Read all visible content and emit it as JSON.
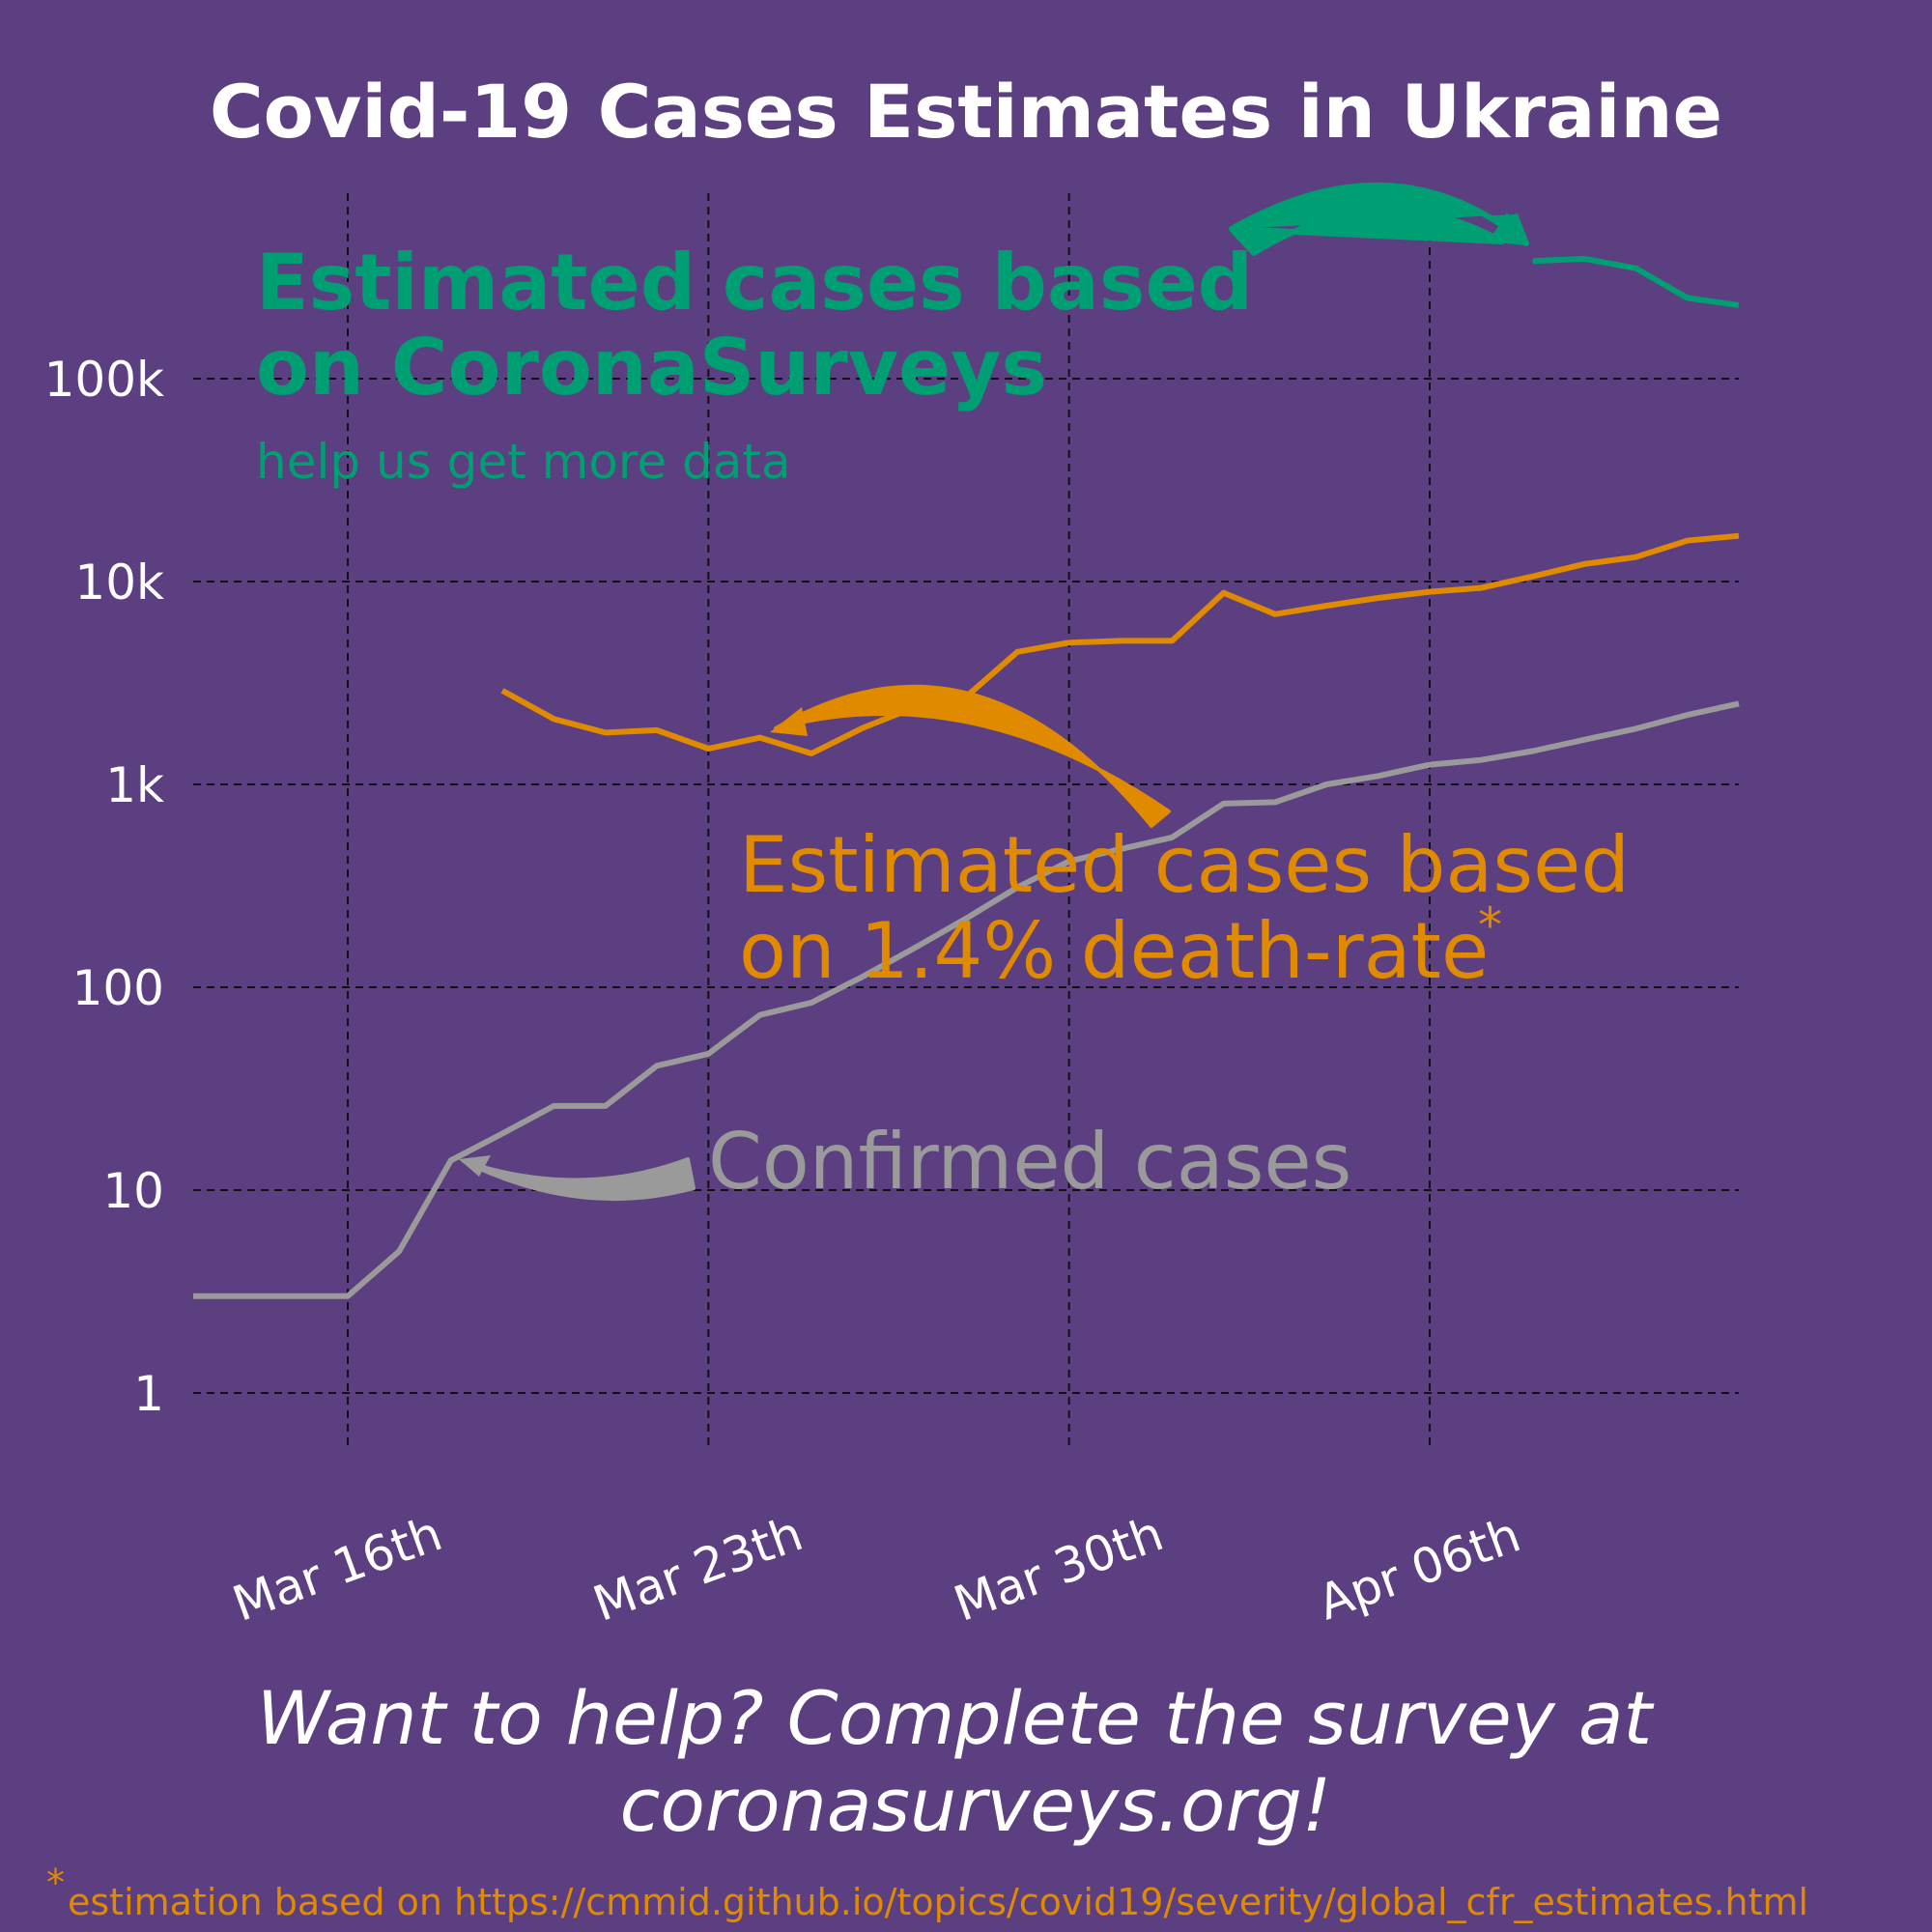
{
  "colors": {
    "background": "#5c3f80",
    "surveys": "#009e73",
    "deaths": "#e08a00",
    "confirmed": "#9a9a9a",
    "text": "#ffffff"
  },
  "chart_data": {
    "type": "line",
    "title": "Covid-19 Cases Estimates in Ukraine",
    "xlabel": "",
    "ylabel": "",
    "y_scale": "log",
    "grid": true,
    "ylim": [
      0.5,
      300000
    ],
    "y_ticks": [
      1,
      10,
      100,
      1000,
      10000,
      100000
    ],
    "y_tick_labels": [
      "1",
      "10",
      "100",
      "1k",
      "10k",
      "100k"
    ],
    "x_range": [
      "2020-03-13",
      "2020-04-12"
    ],
    "x_ticks": [
      "2020-03-16",
      "2020-03-23",
      "2020-03-30",
      "2020-04-06"
    ],
    "x_tick_labels": [
      "Mar 16th",
      "Mar 23th",
      "Mar 30th",
      "Apr 06th"
    ],
    "series": [
      {
        "name": "Confirmed cases",
        "color": "#9a9a9a",
        "points": [
          [
            "2020-03-13",
            3
          ],
          [
            "2020-03-14",
            3
          ],
          [
            "2020-03-15",
            3
          ],
          [
            "2020-03-16",
            3
          ],
          [
            "2020-03-17",
            5
          ],
          [
            "2020-03-18",
            14
          ],
          [
            "2020-03-19",
            19
          ],
          [
            "2020-03-20",
            26
          ],
          [
            "2020-03-21",
            26
          ],
          [
            "2020-03-22",
            41
          ],
          [
            "2020-03-23",
            47
          ],
          [
            "2020-03-24",
            73
          ],
          [
            "2020-03-25",
            84
          ],
          [
            "2020-03-26",
            113
          ],
          [
            "2020-03-27",
            156
          ],
          [
            "2020-03-28",
            218
          ],
          [
            "2020-03-29",
            311
          ],
          [
            "2020-03-30",
            418
          ],
          [
            "2020-03-31",
            480
          ],
          [
            "2020-04-01",
            548
          ],
          [
            "2020-04-02",
            804
          ],
          [
            "2020-04-03",
            817
          ],
          [
            "2020-04-04",
            1000
          ],
          [
            "2020-04-05",
            1100
          ],
          [
            "2020-04-06",
            1250
          ],
          [
            "2020-04-07",
            1320
          ],
          [
            "2020-04-08",
            1460
          ],
          [
            "2020-04-09",
            1660
          ],
          [
            "2020-04-10",
            1880
          ],
          [
            "2020-04-11",
            2200
          ],
          [
            "2020-04-12",
            2500
          ]
        ]
      },
      {
        "name": "Estimated cases based on 1.4% death-rate",
        "color": "#e08a00",
        "points": [
          [
            "2020-03-19",
            2900
          ],
          [
            "2020-03-20",
            2100
          ],
          [
            "2020-03-21",
            1800
          ],
          [
            "2020-03-22",
            1850
          ],
          [
            "2020-03-23",
            1500
          ],
          [
            "2020-03-24",
            1700
          ],
          [
            "2020-03-25",
            1420
          ],
          [
            "2020-03-26",
            1900
          ],
          [
            "2020-03-27",
            2400
          ],
          [
            "2020-03-28",
            2700
          ],
          [
            "2020-03-29",
            4500
          ],
          [
            "2020-03-30",
            5000
          ],
          [
            "2020-03-31",
            5100
          ],
          [
            "2020-04-01",
            5100
          ],
          [
            "2020-04-02",
            8800
          ],
          [
            "2020-04-03",
            6900
          ],
          [
            "2020-04-04",
            7600
          ],
          [
            "2020-04-05",
            8300
          ],
          [
            "2020-04-06",
            8900
          ],
          [
            "2020-04-07",
            9300
          ],
          [
            "2020-04-08",
            10600
          ],
          [
            "2020-04-09",
            12200
          ],
          [
            "2020-04-10",
            13200
          ],
          [
            "2020-04-11",
            15900
          ],
          [
            "2020-04-12",
            16800
          ]
        ]
      },
      {
        "name": "Estimated cases based on CoronaSurveys",
        "color": "#009e73",
        "points": [
          [
            "2020-04-08",
            380000
          ],
          [
            "2020-04-09",
            390000
          ],
          [
            "2020-04-10",
            350000
          ],
          [
            "2020-04-11",
            250000
          ],
          [
            "2020-04-12",
            230000
          ]
        ]
      }
    ]
  },
  "annotations": {
    "surveys_line1": "Estimated cases based",
    "surveys_line2": "on CoronaSurveys",
    "surveys_sub": "help us get more data",
    "deaths_line1": "Estimated cases based",
    "deaths_line2": "on 1.4% death-rate",
    "deaths_star": "*",
    "confirmed": "Confirmed cases"
  },
  "cta_line1": "Want to help? Complete the survey at",
  "cta_line2": "coronasurveys.org!",
  "footnote_star": "*",
  "footnote": "estimation based on https://cmmid.github.io/topics/covid19/severity/global_cfr_estimates.html"
}
